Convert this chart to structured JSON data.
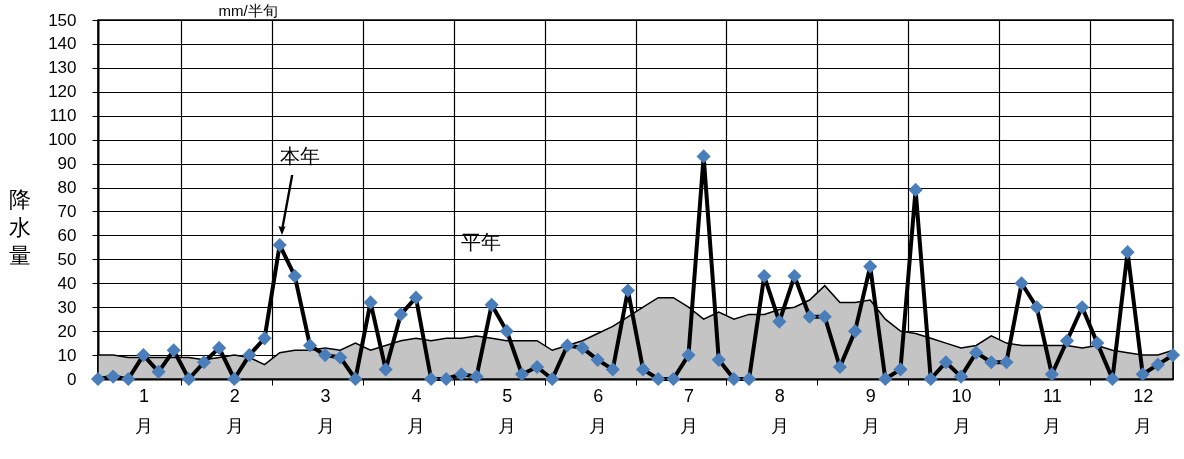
{
  "chart_data": {
    "type": "line",
    "ylabel": "降水量",
    "categories": [
      null,
      null,
      null,
      "1月",
      null,
      null,
      null,
      null,
      null,
      "2月",
      null,
      null,
      null,
      null,
      null,
      "3月",
      null,
      null,
      null,
      null,
      null,
      "4月",
      null,
      null,
      null,
      null,
      null,
      "5月",
      null,
      null,
      null,
      null,
      null,
      "6月",
      null,
      null,
      null,
      null,
      null,
      "7月",
      null,
      null,
      null,
      null,
      null,
      "8月",
      null,
      null,
      null,
      null,
      null,
      "9月",
      null,
      null,
      null,
      null,
      null,
      "10月",
      null,
      null,
      null,
      null,
      null,
      "11月",
      null,
      null,
      null,
      null,
      null,
      "12月",
      null,
      null
    ],
    "series": [
      {
        "type": "area",
        "color": "#c4c4c4",
        "marker": "none",
        "values": [
          10,
          10,
          9,
          9,
          9,
          9,
          9,
          8,
          9,
          10,
          9,
          6,
          11,
          12,
          12,
          13,
          12,
          15,
          12,
          14,
          16,
          17,
          16,
          17,
          17,
          18,
          17,
          16,
          16,
          16,
          12,
          14,
          16,
          19,
          22,
          26,
          30,
          34,
          34,
          30,
          25,
          28,
          25,
          27,
          27,
          29,
          30,
          33,
          39,
          32,
          32,
          33,
          25,
          20,
          19,
          17,
          15,
          13,
          14,
          18,
          15,
          14,
          14,
          14,
          14,
          13,
          14,
          12,
          11,
          10,
          10,
          12
        ]
      },
      {
        "color": "#4a7ebb",
        "values": [
          0,
          1,
          0,
          10,
          3,
          12,
          0,
          7,
          13,
          0,
          10,
          17,
          56,
          43,
          14,
          10,
          9,
          0,
          32,
          4,
          27,
          34,
          0,
          0,
          2,
          1,
          31,
          20,
          2,
          5,
          0,
          14,
          13,
          8,
          4,
          37,
          4,
          0,
          0,
          10,
          93,
          8,
          0,
          0,
          43,
          24,
          43,
          26,
          26,
          5,
          20,
          47,
          0,
          4,
          79,
          0,
          7,
          1,
          11,
          7,
          7,
          40,
          30,
          2,
          16,
          30,
          15,
          0,
          53,
          2,
          6,
          10
        ]
      }
    ],
    "ylim": [
      0,
      150
    ],
    "yticks": [
      0,
      10,
      20,
      30,
      40,
      50,
      60,
      70,
      80,
      90,
      100,
      110,
      120,
      130,
      140,
      150
    ],
    "grid": true,
    "marker": "diamond",
    "line_style": "solid",
    "annotations": [
      "mm/半旬",
      "本年",
      "平年"
    ]
  }
}
